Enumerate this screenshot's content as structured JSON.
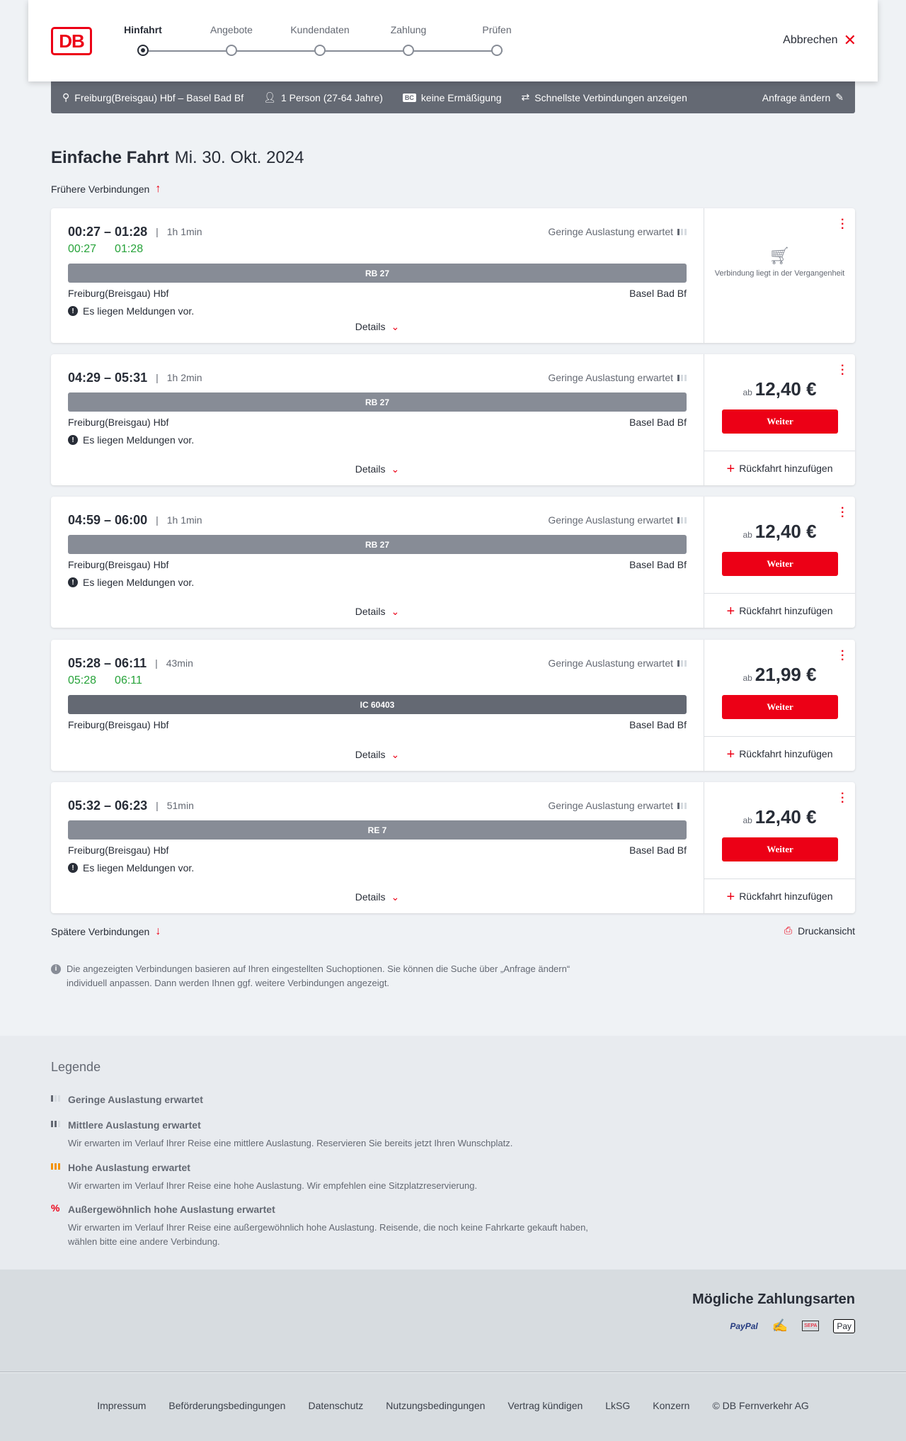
{
  "header": {
    "logo": "DB",
    "steps": [
      {
        "label": "Hinfahrt",
        "active": true
      },
      {
        "label": "Angebote"
      },
      {
        "label": "Kundendaten"
      },
      {
        "label": "Zahlung"
      },
      {
        "label": "Prüfen"
      }
    ],
    "cancel": "Abbrechen"
  },
  "infobar": {
    "route": "Freiburg(Breisgau) Hbf – Basel Bad Bf",
    "persons": "1 Person (27-64 Jahre)",
    "discount_badge": "BC",
    "discount": "keine Ermäßigung",
    "fastest": "Schnellste Verbindungen anzeigen",
    "edit": "Anfrage ändern"
  },
  "page": {
    "title": "Einfache Fahrt",
    "date": "Mi. 30. Okt. 2024",
    "earlier": "Frühere Verbindungen",
    "later": "Spätere Verbindungen",
    "print": "Druckansicht",
    "note": "Die angezeigten Verbindungen basieren auf Ihren eingestellten Suchoptionen. Sie können die Suche über „Anfrage ändern“ individuell anpassen. Dann werden Ihnen ggf. weitere Verbindungen angezeigt."
  },
  "common": {
    "load": "Geringe Auslastung erwartet",
    "from": "Freiburg(Breisgau) Hbf",
    "to": "Basel Bad Bf",
    "messages": "Es liegen Meldungen vor.",
    "details": "Details",
    "ab": "ab",
    "continue": "Weiter",
    "return": "Rückfahrt hinzufügen",
    "past": "Verbindung liegt in der Vergangenheit"
  },
  "connections": [
    {
      "times": "00:27 – 01:28",
      "duration": "1h 1min",
      "rt_dep": "00:27",
      "rt_arr": "01:28",
      "train": "RB 27",
      "messages": true,
      "past": true
    },
    {
      "times": "04:29 – 05:31",
      "duration": "1h 2min",
      "train": "RB 27",
      "messages": true,
      "price": "12,40 €"
    },
    {
      "times": "04:59 – 06:00",
      "duration": "1h 1min",
      "train": "RB 27",
      "messages": true,
      "price": "12,40 €"
    },
    {
      "times": "05:28 – 06:11",
      "duration": "43min",
      "rt_dep": "05:28",
      "rt_arr": "06:11",
      "train": "IC 60403",
      "messages": false,
      "price": "21,99 €"
    },
    {
      "times": "05:32 – 06:23",
      "duration": "51min",
      "train": "RE 7",
      "messages": true,
      "price": "12,40 €"
    }
  ],
  "legend": {
    "title": "Legende",
    "items": [
      {
        "title": "Geringe Auslastung erwartet",
        "desc": ""
      },
      {
        "title": "Mittlere Auslastung erwartet",
        "desc": "Wir erwarten im Verlauf Ihrer Reise eine mittlere Auslastung. Reservieren Sie bereits jetzt Ihren Wunschplatz."
      },
      {
        "title": "Hohe Auslastung erwartet",
        "desc": "Wir erwarten im Verlauf Ihrer Reise eine hohe Auslastung. Wir empfehlen eine Sitzplatzreservierung."
      },
      {
        "title": "Außergewöhnlich hohe Auslastung erwartet",
        "desc": "Wir erwarten im Verlauf Ihrer Reise eine außergewöhnlich hohe Auslastung. Reisende, die noch keine Fahrkarte gekauft haben, wählen bitte eine andere Verbindung."
      }
    ]
  },
  "payment": {
    "title": "Mögliche Zahlungsarten",
    "methods": [
      "PayPal",
      "Kreditkarte",
      "SEPA",
      "Apple Pay"
    ]
  },
  "footer": [
    "Impressum",
    "Beförderungsbedingungen",
    "Datenschutz",
    "Nutzungsbedingungen",
    "Vertrag kündigen",
    "LkSG",
    "Konzern",
    "© DB Fernverkehr AG"
  ],
  "colors": {
    "brand": "#ec0016",
    "realtime": "#27a33a",
    "bar": "#878c96",
    "infobar": "#646973"
  }
}
